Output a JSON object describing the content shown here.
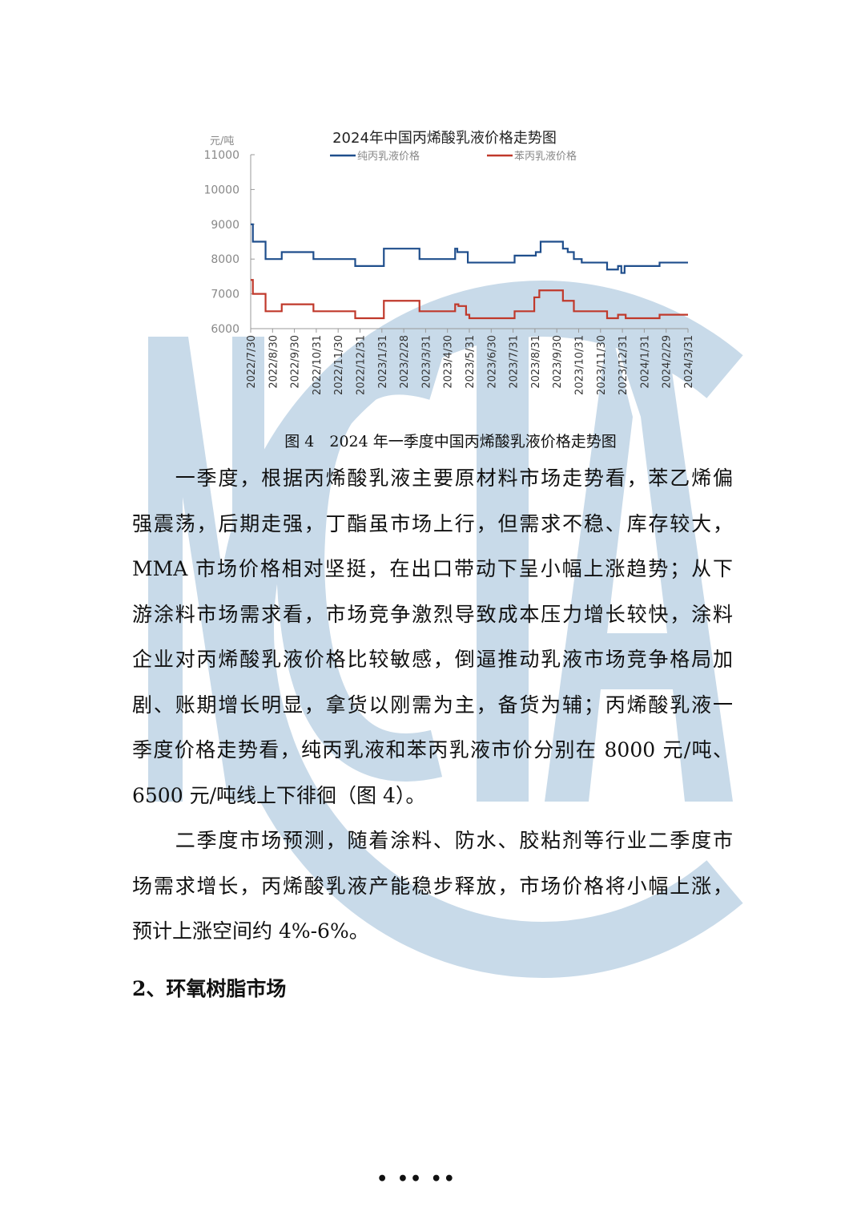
{
  "watermark": {
    "text": "NCIA",
    "color": "#c8dae9"
  },
  "chart_data": {
    "type": "line",
    "step": true,
    "title": "2024年中国丙烯酸乳液价格走势图",
    "ylabel": "元/吨",
    "ylim": [
      6000,
      11000
    ],
    "yticks": [
      6000,
      7000,
      8000,
      9000,
      10000,
      11000
    ],
    "categories": [
      "2022/7/30",
      "2022/8/30",
      "2022/9/30",
      "2022/10/31",
      "2022/11/30",
      "2022/12/31",
      "2023/1/31",
      "2023/2/28",
      "2023/3/31",
      "2023/4/30",
      "2023/5/31",
      "2023/6/30",
      "2023/7/31",
      "2023/8/31",
      "2023/9/30",
      "2023/10/31",
      "2023/11/30",
      "2023/12/31",
      "2024/1/31",
      "2024/2/29",
      "2024/3/31"
    ],
    "legend_placement": "top",
    "grid": false,
    "series": [
      {
        "name": "纯丙乳液价格",
        "color": "#1f4e8c",
        "points": [
          [
            0,
            9000
          ],
          [
            0.1,
            8500
          ],
          [
            0.68,
            8000
          ],
          [
            1.42,
            8200
          ],
          [
            2.87,
            8000
          ],
          [
            4.78,
            7800
          ],
          [
            6.09,
            8300
          ],
          [
            7.72,
            8000
          ],
          [
            9.35,
            8300
          ],
          [
            9.45,
            8200
          ],
          [
            9.93,
            7900
          ],
          [
            12.07,
            8100
          ],
          [
            13.04,
            8200
          ],
          [
            13.26,
            8500
          ],
          [
            14.28,
            8300
          ],
          [
            14.5,
            8200
          ],
          [
            14.78,
            8000
          ],
          [
            15.14,
            7900
          ],
          [
            16.3,
            7700
          ],
          [
            16.8,
            7800
          ],
          [
            16.95,
            7600
          ],
          [
            17.1,
            7800
          ],
          [
            18.7,
            7900
          ],
          [
            20,
            7900
          ]
        ]
      },
      {
        "name": "苯丙乳液价格",
        "color": "#c0392b",
        "points": [
          [
            0,
            7400
          ],
          [
            0.1,
            7000
          ],
          [
            0.68,
            6500
          ],
          [
            1.42,
            6700
          ],
          [
            2.87,
            6500
          ],
          [
            4.78,
            6300
          ],
          [
            6.09,
            6800
          ],
          [
            7.72,
            6500
          ],
          [
            9.35,
            6700
          ],
          [
            9.5,
            6650
          ],
          [
            9.85,
            6400
          ],
          [
            10.0,
            6300
          ],
          [
            12.07,
            6500
          ],
          [
            12.97,
            6900
          ],
          [
            13.2,
            7100
          ],
          [
            14.28,
            6800
          ],
          [
            14.78,
            6500
          ],
          [
            16.3,
            6300
          ],
          [
            16.8,
            6400
          ],
          [
            17.15,
            6300
          ],
          [
            18.7,
            6400
          ],
          [
            20,
            6400
          ]
        ]
      }
    ]
  },
  "caption": "图 4　2024 年一季度中国丙烯酸乳液价格走势图",
  "paragraphs": [
    {
      "lines": [
        "　　一季度，根据丙烯酸乳液主要原材料市场走势看，苯乙烯偏",
        "强震荡，后期走强，丁酯虽市场上行，但需求不稳、库存较大，",
        "MMA 市场价格相对坚挺，在出口带动下呈小幅上涨趋势；从下",
        "游涂料市场需求看，市场竞争激烈导致成本压力增长较快，涂料",
        "企业对丙烯酸乳液价格比较敏感，倒逼推动乳液市场竞争格局加",
        "剧、账期增长明显，拿货以刚需为主，备货为辅；丙烯酸乳液一",
        "季度价格走势看，纯丙乳液和苯丙乳液市价分别在 8000 元/吨、",
        "6500 元/吨线上下徘徊（图 4）。"
      ]
    },
    {
      "lines": [
        "　　二季度市场预测，随着涂料、防水、胶粘剂等行业二季度市",
        "场需求增长，丙烯酸乳液产能稳步释放，市场价格将小幅上涨，",
        "预计上涨空间约 4%-6%。"
      ]
    }
  ],
  "heading": "2、环氧树脂市场",
  "footer": "• •• ••"
}
